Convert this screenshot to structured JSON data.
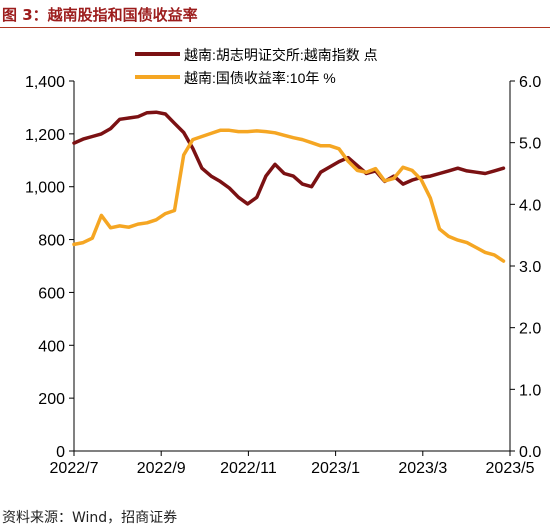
{
  "figure": {
    "title": "图 3：越南股指和国债收益率",
    "source": "资料来源：Wind，招商证券"
  },
  "chart_data": {
    "type": "line",
    "x_tick_labels": [
      "2022/7",
      "2022/9",
      "2022/11",
      "2023/1",
      "2023/3",
      "2023/5"
    ],
    "y_left": {
      "range": [
        0,
        1400
      ],
      "ticks": [
        "0",
        "200",
        "400",
        "600",
        "800",
        "1,000",
        "1,200",
        "1,400"
      ]
    },
    "y_right": {
      "range": [
        0,
        6
      ],
      "ticks": [
        "0.0",
        "1.0",
        "2.0",
        "3.0",
        "4.0",
        "5.0",
        "6.0"
      ]
    },
    "legend_position": "top-center",
    "grid": false,
    "series": [
      {
        "name": "越南:胡志明证交所:越南指数 点",
        "axis": "left",
        "color": "#7b1113",
        "x": [
          "2022-07-01",
          "2022-07-08",
          "2022-07-15",
          "2022-07-22",
          "2022-07-29",
          "2022-08-05",
          "2022-08-12",
          "2022-08-19",
          "2022-08-26",
          "2022-09-02",
          "2022-09-09",
          "2022-09-16",
          "2022-09-23",
          "2022-09-30",
          "2022-10-07",
          "2022-10-14",
          "2022-10-21",
          "2022-10-28",
          "2022-11-04",
          "2022-11-11",
          "2022-11-18",
          "2022-11-25",
          "2022-12-02",
          "2022-12-09",
          "2022-12-16",
          "2022-12-23",
          "2022-12-30",
          "2023-01-06",
          "2023-01-13",
          "2023-01-20",
          "2023-01-27",
          "2023-02-03",
          "2023-02-10",
          "2023-02-17",
          "2023-02-24",
          "2023-03-03",
          "2023-03-10",
          "2023-03-17",
          "2023-03-24",
          "2023-03-31",
          "2023-04-07",
          "2023-04-14",
          "2023-04-21",
          "2023-04-28",
          "2023-05-05",
          "2023-05-12",
          "2023-05-19",
          "2023-05-26"
        ],
        "values": [
          1165,
          1180,
          1190,
          1200,
          1220,
          1255,
          1260,
          1265,
          1280,
          1282,
          1275,
          1240,
          1205,
          1145,
          1070,
          1040,
          1020,
          995,
          960,
          935,
          960,
          1040,
          1085,
          1050,
          1040,
          1010,
          1000,
          1055,
          1075,
          1095,
          1110,
          1080,
          1050,
          1060,
          1020,
          1040,
          1010,
          1025,
          1035,
          1040,
          1050,
          1060,
          1070,
          1060,
          1055,
          1050,
          1060,
          1070
        ]
      },
      {
        "name": "越南:国债收益率:10年 %",
        "axis": "right",
        "color": "#f5a623",
        "x": [
          "2022-07-01",
          "2022-07-08",
          "2022-07-15",
          "2022-07-22",
          "2022-07-29",
          "2022-08-05",
          "2022-08-12",
          "2022-08-19",
          "2022-08-26",
          "2022-09-02",
          "2022-09-09",
          "2022-09-16",
          "2022-09-23",
          "2022-09-30",
          "2022-10-07",
          "2022-10-14",
          "2022-10-21",
          "2022-10-28",
          "2022-11-04",
          "2022-11-11",
          "2022-11-18",
          "2022-11-25",
          "2022-12-02",
          "2022-12-09",
          "2022-12-16",
          "2022-12-23",
          "2022-12-30",
          "2023-01-06",
          "2023-01-13",
          "2023-01-20",
          "2023-01-27",
          "2023-02-03",
          "2023-02-10",
          "2023-02-17",
          "2023-02-24",
          "2023-03-03",
          "2023-03-10",
          "2023-03-17",
          "2023-03-24",
          "2023-03-31",
          "2023-04-07",
          "2023-04-14",
          "2023-04-21",
          "2023-04-28",
          "2023-05-05",
          "2023-05-12",
          "2023-05-19",
          "2023-05-26"
        ],
        "values": [
          3.35,
          3.38,
          3.45,
          3.82,
          3.62,
          3.65,
          3.63,
          3.68,
          3.7,
          3.75,
          3.85,
          3.9,
          4.8,
          5.05,
          5.1,
          5.15,
          5.2,
          5.2,
          5.18,
          5.18,
          5.19,
          5.18,
          5.16,
          5.12,
          5.08,
          5.05,
          5.0,
          4.95,
          4.95,
          4.9,
          4.7,
          4.55,
          4.52,
          4.58,
          4.38,
          4.42,
          4.6,
          4.55,
          4.4,
          4.1,
          3.6,
          3.48,
          3.42,
          3.38,
          3.3,
          3.22,
          3.18,
          3.08
        ]
      }
    ]
  }
}
